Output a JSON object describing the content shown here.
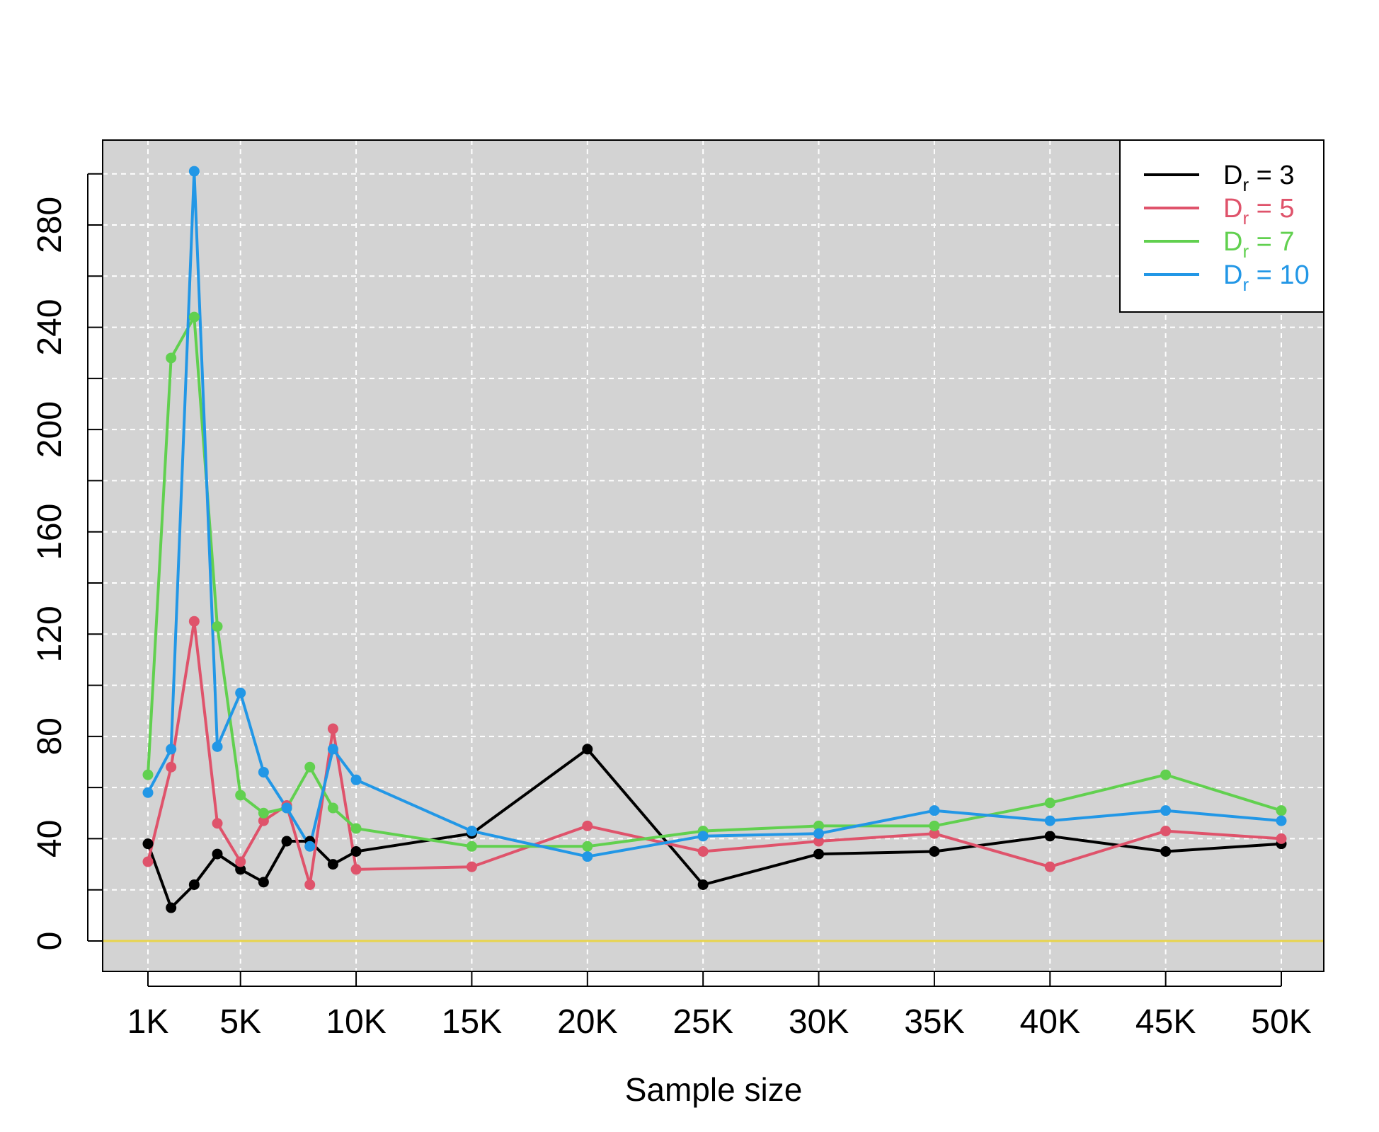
{
  "chart_data": {
    "type": "line",
    "title": "",
    "xlabel": "Sample size",
    "ylabel": "",
    "xlim": [
      0,
      52000
    ],
    "ylim": [
      -10,
      315
    ],
    "x_ticks": [
      {
        "value": 1000,
        "label": "1K"
      },
      {
        "value": 5000,
        "label": "5K"
      },
      {
        "value": 10000,
        "label": "10K"
      },
      {
        "value": 15000,
        "label": "15K"
      },
      {
        "value": 20000,
        "label": "20K"
      },
      {
        "value": 25000,
        "label": "25K"
      },
      {
        "value": 30000,
        "label": "30K"
      },
      {
        "value": 35000,
        "label": "35K"
      },
      {
        "value": 40000,
        "label": "40K"
      },
      {
        "value": 45000,
        "label": "45K"
      },
      {
        "value": 50000,
        "label": "50K"
      }
    ],
    "y_ticks": [
      0,
      40,
      80,
      120,
      160,
      200,
      240,
      280
    ],
    "y_minor_ticks": [
      20,
      60,
      100,
      140,
      180,
      220,
      260,
      300
    ],
    "grid": true,
    "background": "#d3d3d3",
    "reference_line": {
      "y": 0,
      "color": "#e8d44d"
    },
    "legend_position": "top-right",
    "x": [
      1000,
      2000,
      3000,
      4000,
      5000,
      6000,
      7000,
      8000,
      9000,
      10000,
      15000,
      20000,
      25000,
      30000,
      35000,
      40000,
      45000,
      50000
    ],
    "series": [
      {
        "legend_main": "D",
        "legend_sub": "r",
        "legend_tail": " = 3",
        "color": "#000000",
        "values": [
          38,
          13,
          22,
          34,
          28,
          23,
          39,
          39,
          30,
          35,
          42,
          75,
          22,
          34,
          35,
          41,
          35,
          38
        ]
      },
      {
        "legend_main": "D",
        "legend_sub": "r",
        "legend_tail": " = 5",
        "color": "#df536b",
        "values": [
          31,
          68,
          125,
          46,
          31,
          47,
          53,
          22,
          83,
          28,
          29,
          45,
          35,
          39,
          42,
          29,
          43,
          40
        ]
      },
      {
        "legend_main": "D",
        "legend_sub": "r",
        "legend_tail": " = 7",
        "color": "#61d04f",
        "values": [
          65,
          228,
          244,
          123,
          57,
          50,
          52,
          68,
          52,
          44,
          37,
          37,
          43,
          45,
          45,
          54,
          65,
          51
        ]
      },
      {
        "legend_main": "D",
        "legend_sub": "r",
        "legend_tail": " = 10",
        "color": "#2297e6",
        "values": [
          58,
          75,
          301,
          76,
          97,
          66,
          52,
          37,
          75,
          63,
          43,
          33,
          41,
          42,
          51,
          47,
          51,
          47
        ]
      }
    ]
  }
}
